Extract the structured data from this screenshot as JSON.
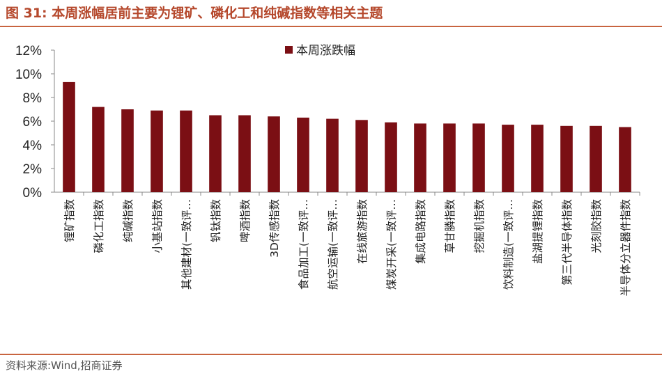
{
  "header": {
    "figure_label": "图 31:",
    "title": "本周涨幅居前主要为锂矿、磷化工和纯碱指数等相关主题"
  },
  "footer": {
    "source": "资料来源:Wind,招商证券"
  },
  "colors": {
    "bar": "#7b0f14",
    "title": "#b5482c",
    "rule": "#c8643f"
  },
  "chart_data": {
    "type": "bar",
    "title": "",
    "xlabel": "",
    "ylabel": "",
    "ylim": [
      0,
      12
    ],
    "yticks": [
      "0%",
      "2%",
      "4%",
      "6%",
      "8%",
      "10%",
      "12%"
    ],
    "grid": false,
    "legend_position": "top-center",
    "categories": [
      "锂矿指数",
      "磷化工指数",
      "纯碱指数",
      "小基站指数",
      "其他建材(一致评…",
      "钒钛指数",
      "啤酒指数",
      "3D传感指数",
      "食品加工(一致评…",
      "航空运输(一致评…",
      "在线旅游指数",
      "煤炭开采(一致评…",
      "集成电路指数",
      "草甘膦指数",
      "挖掘机指数",
      "饮料制造(一致评…",
      "盐湖提锂指数",
      "第三代半导体指数",
      "光刻胶指数",
      "半导体分立器件指数"
    ],
    "series": [
      {
        "name": "本周涨跌幅",
        "values": [
          9.3,
          7.2,
          7.0,
          6.9,
          6.9,
          6.5,
          6.5,
          6.4,
          6.3,
          6.2,
          6.1,
          5.9,
          5.8,
          5.8,
          5.8,
          5.7,
          5.7,
          5.6,
          5.6,
          5.5
        ]
      }
    ]
  }
}
